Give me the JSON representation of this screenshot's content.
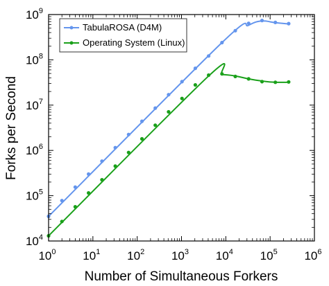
{
  "chart_data": {
    "type": "line",
    "title": "",
    "xlabel": "Number of Simultaneous Forkers",
    "ylabel": "Forks per Second",
    "xscale": "log",
    "yscale": "log",
    "xlim": [
      1,
      1000000
    ],
    "ylim": [
      10000,
      1000000000
    ],
    "x_ticks": [
      {
        "base": "10",
        "exp": "0"
      },
      {
        "base": "10",
        "exp": "1"
      },
      {
        "base": "10",
        "exp": "2"
      },
      {
        "base": "10",
        "exp": "3"
      },
      {
        "base": "10",
        "exp": "4"
      },
      {
        "base": "10",
        "exp": "5"
      },
      {
        "base": "10",
        "exp": "6"
      }
    ],
    "y_ticks": [
      {
        "base": "10",
        "exp": "4"
      },
      {
        "base": "10",
        "exp": "5"
      },
      {
        "base": "10",
        "exp": "6"
      },
      {
        "base": "10",
        "exp": "7"
      },
      {
        "base": "10",
        "exp": "8"
      },
      {
        "base": "10",
        "exp": "9"
      }
    ],
    "legend_position": "top-left",
    "grid": false,
    "series": [
      {
        "name": "TabulaROSA (D4M)",
        "color": "#6495ed",
        "marker": "circle",
        "points": [
          {
            "x": 1,
            "y": 35000
          },
          {
            "x": 2,
            "y": 78000
          },
          {
            "x": 4,
            "y": 155000
          },
          {
            "x": 8,
            "y": 300000
          },
          {
            "x": 16,
            "y": 580000
          },
          {
            "x": 32,
            "y": 1150000
          },
          {
            "x": 64,
            "y": 2250000
          },
          {
            "x": 128,
            "y": 4400000
          },
          {
            "x": 256,
            "y": 8600000
          },
          {
            "x": 512,
            "y": 17000000
          },
          {
            "x": 1024,
            "y": 33000000
          },
          {
            "x": 2048,
            "y": 65000000
          },
          {
            "x": 4096,
            "y": 122000000
          },
          {
            "x": 8192,
            "y": 240000000
          },
          {
            "x": 16384,
            "y": 440000000
          },
          {
            "x": 32768,
            "y": 640000000
          },
          {
            "x": 65536,
            "y": 740000000
          },
          {
            "x": 131072,
            "y": 670000000
          },
          {
            "x": 262144,
            "y": 630000000
          }
        ],
        "fit": [
          {
            "x": 1,
            "y": 35000
          },
          {
            "x": 8192,
            "y": 240000000
          },
          {
            "x": 32768,
            "y": 580000000
          },
          {
            "x": 65536,
            "y": 720000000
          },
          {
            "x": 131072,
            "y": 660000000
          },
          {
            "x": 262144,
            "y": 620000000
          }
        ]
      },
      {
        "name": "Operating System (Linux)",
        "color": "#1aa01a",
        "marker": "circle",
        "points": [
          {
            "x": 1,
            "y": 13000
          },
          {
            "x": 2,
            "y": 27000
          },
          {
            "x": 4,
            "y": 57000
          },
          {
            "x": 8,
            "y": 115000
          },
          {
            "x": 16,
            "y": 225000
          },
          {
            "x": 32,
            "y": 450000
          },
          {
            "x": 64,
            "y": 900000
          },
          {
            "x": 128,
            "y": 1800000
          },
          {
            "x": 256,
            "y": 3600000
          },
          {
            "x": 512,
            "y": 7100000
          },
          {
            "x": 1024,
            "y": 14000000
          },
          {
            "x": 2048,
            "y": 28000000
          },
          {
            "x": 4096,
            "y": 46000000
          },
          {
            "x": 8192,
            "y": 49000000
          },
          {
            "x": 16384,
            "y": 43000000
          },
          {
            "x": 32768,
            "y": 38000000
          },
          {
            "x": 65536,
            "y": 33000000
          },
          {
            "x": 131072,
            "y": 32000000
          },
          {
            "x": 262144,
            "y": 32500000
          }
        ],
        "fit": [
          {
            "x": 1,
            "y": 13000
          },
          {
            "x": 4096,
            "y": 44000000
          },
          {
            "x": 8192,
            "y": 47000000
          },
          {
            "x": 16384,
            "y": 44000000
          },
          {
            "x": 32768,
            "y": 38000000
          },
          {
            "x": 65536,
            "y": 34000000
          },
          {
            "x": 131072,
            "y": 32000000
          },
          {
            "x": 262144,
            "y": 32000000
          }
        ]
      }
    ]
  }
}
